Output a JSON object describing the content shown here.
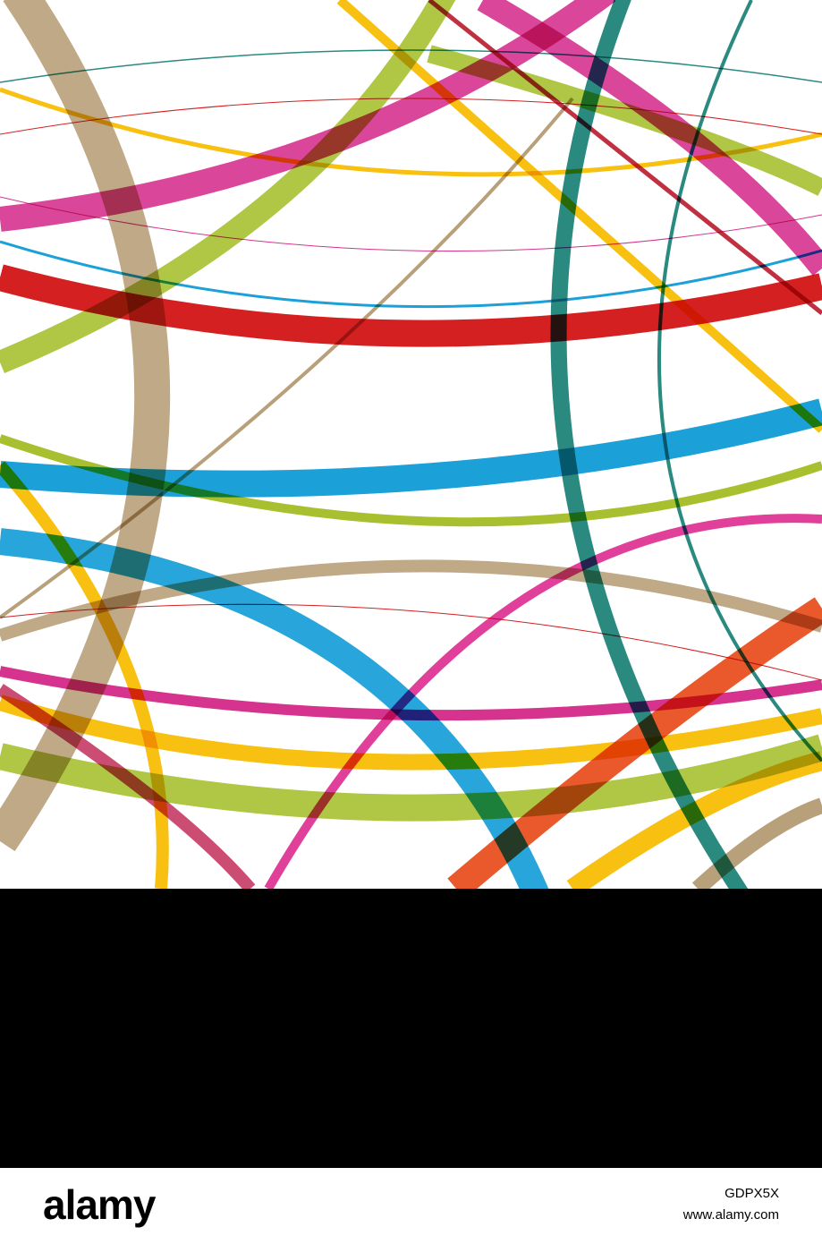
{
  "watermark": {
    "logo": "alamy",
    "image_id": "GDPX5X",
    "url": "www.alamy.com"
  }
}
